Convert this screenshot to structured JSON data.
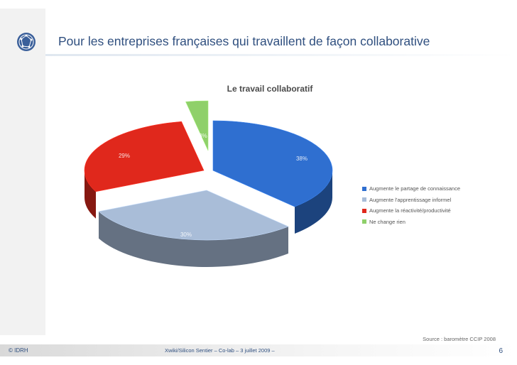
{
  "slide": {
    "title": "Pour les entreprises françaises qui travaillent de façon collaborative",
    "source": "Source : baromètre CCIP 2008",
    "footer_left": "© IDRH",
    "footer_middle": "Xwiki/Silicon Sentier – Co-lab – 3 juillet 2009 –",
    "page_number": "6"
  },
  "chart_data": {
    "type": "pie",
    "title": "Le travail collaboratif",
    "categories": [
      "Augmente le partage de connaissance",
      "Augmente l'apprentissage informel",
      "Augmente la réactivité/productivité",
      "Ne change rien"
    ],
    "values": [
      38,
      30,
      29,
      3
    ],
    "value_labels": [
      "38%",
      "30%",
      "29%",
      "3%"
    ],
    "colors": [
      "#2f6fd0",
      "#a9bdd8",
      "#e0281c",
      "#8fd06a"
    ],
    "legend_position": "right",
    "style": "3d-exploded"
  }
}
